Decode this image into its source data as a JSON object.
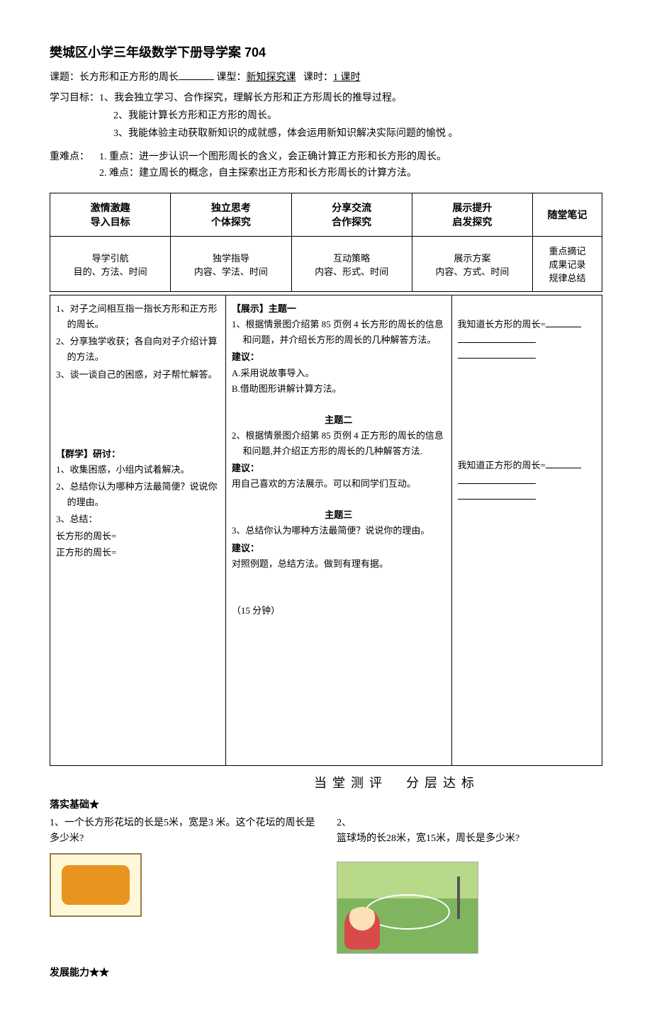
{
  "title": "樊城区小学三年级数学下册导学案 704",
  "meta": {
    "topic_label": "课题：",
    "topic_value": "长方形和正方形的周长",
    "type_label": "课型：",
    "type_value": "新知探究课",
    "period_label": "课时：",
    "period_value": "1 课时"
  },
  "goals_label": "学习目标：",
  "goals": [
    "1、我会独立学习、合作探究，理解长方形和正方形周长的推导过程。",
    "2、我能计算长方形和正方形的周长。",
    "3、我能体验主动获取新知识的成就感，体会运用新知识解决实际问题的愉悦  。"
  ],
  "difficulty_label": "重难点：",
  "difficulty": [
    "1. 重点：进一步认识一个图形周长的含义，会正确计算正方形和长方形的周长。",
    "2. 难点：建立周长的概念，自主探索出正方形和长方形周长的计算方法。"
  ],
  "header_row1": [
    "激情激趣\n导入目标",
    "独立思考\n个体探究",
    "分享交流\n合作探究",
    "展示提升\n启发探究",
    "随堂笔记"
  ],
  "header_row2": [
    "导学引航\n目的、方法、时间",
    "独学指导\n内容、学法、时间",
    "互动策略\n内容、形式、时间",
    "展示方案\n内容、方式、时间",
    "重点摘记\n成果记录\n规律总结"
  ],
  "col1_top": [
    "1、对子之间相互指一指长方形和正方形的周长。",
    "2、分享独学收获；各自向对子介绍计算的方法。",
    "3、谈一谈自己的困惑，对子帮忙解答。"
  ],
  "col1_mid_label": "【群学】研讨：",
  "col1_mid": [
    "1、收集困惑，小组内试着解决。",
    "2、总结你认为哪种方法最简便？说说你的理由。",
    "3、总结："
  ],
  "col1_bottom": [
    "长方形的周长=",
    "正方形的周长="
  ],
  "col2_title1": "【展示】主题一",
  "col2_t1_items": [
    "1、根据情景图介绍第 85 页例 4 长方形的周长的信息和问题，并介绍长方形的周长的几种解答方法。"
  ],
  "suggest_label": "建议：",
  "col2_t1_suggest": [
    "A.采用说故事导入。",
    "B.借助图形讲解计算方法。"
  ],
  "col2_title2": "主题二",
  "col2_t2_items": [
    "2、根据情景图介绍第 85 页例 4 正方形的周长的信息和问题,并介绍正方形的周长的几种解答方法."
  ],
  "col2_t2_suggest": [
    "用自己喜欢的方法展示。可以和同学们互动。"
  ],
  "col2_title3": "主题三",
  "col2_t3_items": [
    "3、总结你认为哪种方法最简便？说说你的理由。"
  ],
  "col2_t3_suggest": [
    "对照例题，总结方法。做到有理有据。"
  ],
  "col2_time": "（15 分钟）",
  "col3_rect": "我知道长方形的周长=",
  "col3_square": "我知道正方形的周长=",
  "assessment_title": "当堂测评　分层达标",
  "basic_label": "落实基础★",
  "q1": "1、一个长方形花坛的长是5米，宽是3 米。这个花坛的周长是多少米?",
  "q2_num": "2、",
  "q2_text": "篮球场的长28米，宽15米，周长是多少米?",
  "ability_label": "发展能力★★",
  "colors": {
    "text": "#000000",
    "background": "#ffffff",
    "border": "#000000",
    "img1_bg": "#fef8d8",
    "img1_border": "#9b7a4a",
    "img1_inner": "#e8941f",
    "img2_sky": "#b8d989",
    "img2_ground": "#7fb55e"
  },
  "table_widths": {
    "col1": "28%",
    "col2": "36%",
    "col3": "24%",
    "header_cols": 5
  },
  "fonts": {
    "title_size": 18,
    "body_size": 14,
    "table_size": 13
  }
}
